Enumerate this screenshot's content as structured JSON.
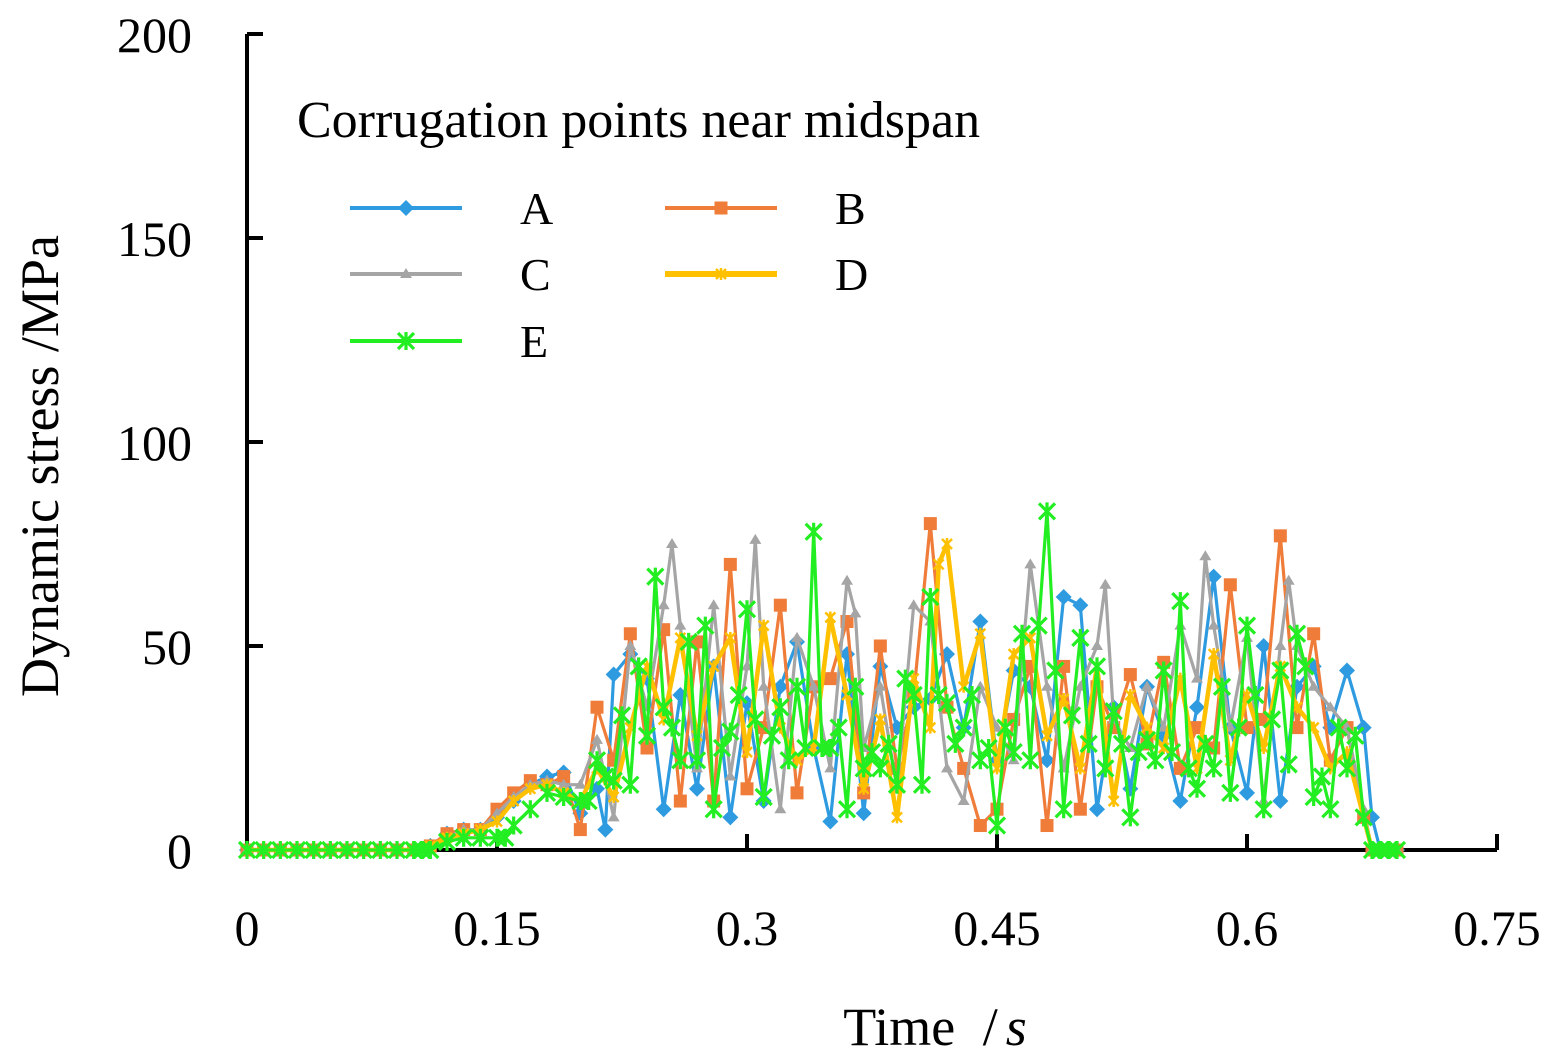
{
  "chart_data": {
    "type": "line",
    "title": "",
    "xlabel": "Time",
    "xlabel_unit": "s",
    "xlabel_sep": "/",
    "ylabel": "Dynamic stress /MPa",
    "xlim": [
      0,
      0.75
    ],
    "ylim": [
      0,
      200
    ],
    "xticks": [
      "0",
      "0.15",
      "0.3",
      "0.45",
      "0.6",
      "0.75"
    ],
    "yticks": [
      "0",
      "50",
      "100",
      "150",
      "200"
    ],
    "grid": false,
    "legend_title": "Corrugation points near midspan",
    "legend_position": "top-left",
    "series": [
      {
        "name": "A",
        "color": "#2e9be0",
        "marker": "diamond",
        "x": [
          0,
          0.01,
          0.02,
          0.03,
          0.04,
          0.05,
          0.06,
          0.07,
          0.08,
          0.09,
          0.1,
          0.11,
          0.12,
          0.13,
          0.14,
          0.15,
          0.16,
          0.17,
          0.18,
          0.19,
          0.2,
          0.21,
          0.215,
          0.22,
          0.23,
          0.24,
          0.25,
          0.26,
          0.27,
          0.28,
          0.29,
          0.3,
          0.31,
          0.32,
          0.33,
          0.34,
          0.35,
          0.36,
          0.37,
          0.38,
          0.39,
          0.4,
          0.41,
          0.42,
          0.43,
          0.44,
          0.45,
          0.46,
          0.47,
          0.48,
          0.49,
          0.5,
          0.51,
          0.52,
          0.53,
          0.54,
          0.55,
          0.56,
          0.57,
          0.58,
          0.59,
          0.6,
          0.61,
          0.62,
          0.63,
          0.64,
          0.65,
          0.66,
          0.67,
          0.675,
          0.68,
          0.69
        ],
        "y": [
          0,
          0,
          0,
          0,
          0,
          0,
          0,
          0,
          0,
          0,
          0,
          1,
          4,
          5,
          5,
          8,
          12,
          16,
          18,
          19,
          9,
          15,
          5,
          43,
          48,
          42,
          10,
          38,
          15,
          45,
          8,
          36,
          12,
          40,
          51,
          25,
          7,
          48,
          9,
          45,
          30,
          35,
          37,
          48,
          30,
          56,
          22,
          44,
          40,
          22,
          62,
          60,
          10,
          35,
          15,
          40,
          28,
          12,
          35,
          67,
          30,
          14,
          50,
          12,
          40,
          45,
          30,
          44,
          30,
          8,
          0,
          0
        ]
      },
      {
        "name": "B",
        "color": "#f07c3a",
        "marker": "square",
        "x": [
          0,
          0.01,
          0.02,
          0.03,
          0.04,
          0.05,
          0.06,
          0.07,
          0.08,
          0.09,
          0.1,
          0.11,
          0.12,
          0.13,
          0.14,
          0.15,
          0.16,
          0.17,
          0.18,
          0.19,
          0.2,
          0.21,
          0.22,
          0.23,
          0.24,
          0.25,
          0.26,
          0.27,
          0.28,
          0.29,
          0.3,
          0.31,
          0.32,
          0.33,
          0.34,
          0.35,
          0.36,
          0.37,
          0.38,
          0.39,
          0.4,
          0.41,
          0.42,
          0.43,
          0.44,
          0.45,
          0.46,
          0.47,
          0.48,
          0.49,
          0.5,
          0.51,
          0.52,
          0.53,
          0.54,
          0.55,
          0.56,
          0.57,
          0.58,
          0.59,
          0.6,
          0.61,
          0.62,
          0.63,
          0.64,
          0.65,
          0.66,
          0.67,
          0.675,
          0.68,
          0.69
        ],
        "y": [
          0,
          0,
          0,
          0,
          0,
          0,
          0,
          0,
          0,
          0,
          0,
          1,
          4,
          5,
          5,
          10,
          14,
          17,
          16,
          18,
          5,
          35,
          22,
          53,
          25,
          54,
          12,
          51,
          12,
          70,
          15,
          30,
          60,
          14,
          40,
          42,
          56,
          14,
          50,
          20,
          38,
          80,
          35,
          20,
          6,
          10,
          32,
          45,
          6,
          45,
          10,
          40,
          30,
          43,
          26,
          46,
          20,
          30,
          25,
          65,
          30,
          32,
          77,
          30,
          53,
          22,
          30,
          8,
          0,
          0,
          0
        ]
      },
      {
        "name": "C",
        "color": "#a5a5a5",
        "marker": "triangle",
        "x": [
          0,
          0.01,
          0.02,
          0.03,
          0.04,
          0.05,
          0.06,
          0.07,
          0.08,
          0.09,
          0.1,
          0.11,
          0.12,
          0.13,
          0.14,
          0.15,
          0.16,
          0.17,
          0.18,
          0.19,
          0.2,
          0.21,
          0.22,
          0.23,
          0.24,
          0.25,
          0.255,
          0.26,
          0.27,
          0.28,
          0.29,
          0.3,
          0.305,
          0.31,
          0.32,
          0.33,
          0.34,
          0.35,
          0.36,
          0.365,
          0.37,
          0.38,
          0.39,
          0.4,
          0.41,
          0.42,
          0.43,
          0.44,
          0.45,
          0.46,
          0.47,
          0.48,
          0.49,
          0.5,
          0.51,
          0.515,
          0.52,
          0.53,
          0.54,
          0.55,
          0.56,
          0.57,
          0.575,
          0.58,
          0.59,
          0.6,
          0.61,
          0.62,
          0.625,
          0.63,
          0.64,
          0.65,
          0.66,
          0.67,
          0.675,
          0.68,
          0.69
        ],
        "y": [
          0,
          0,
          0,
          0,
          0,
          0,
          0,
          0,
          0,
          0,
          0,
          1,
          3,
          5,
          5,
          9,
          13,
          16,
          17,
          16,
          16,
          27,
          8,
          50,
          35,
          60,
          75,
          55,
          20,
          60,
          18,
          45,
          76,
          40,
          10,
          52,
          40,
          20,
          66,
          58,
          25,
          40,
          15,
          60,
          56,
          20,
          12,
          40,
          30,
          22,
          70,
          40,
          20,
          40,
          50,
          65,
          32,
          25,
          40,
          30,
          55,
          42,
          72,
          55,
          30,
          52,
          12,
          50,
          66,
          50,
          40,
          35,
          30,
          10,
          0,
          0,
          0
        ]
      },
      {
        "name": "D",
        "color": "#ffc000",
        "marker": "star",
        "x": [
          0,
          0.01,
          0.02,
          0.03,
          0.04,
          0.05,
          0.06,
          0.07,
          0.08,
          0.09,
          0.1,
          0.11,
          0.12,
          0.13,
          0.14,
          0.15,
          0.16,
          0.17,
          0.18,
          0.19,
          0.2,
          0.21,
          0.22,
          0.23,
          0.24,
          0.25,
          0.26,
          0.27,
          0.28,
          0.29,
          0.3,
          0.31,
          0.32,
          0.33,
          0.34,
          0.35,
          0.36,
          0.37,
          0.38,
          0.39,
          0.4,
          0.41,
          0.415,
          0.42,
          0.43,
          0.44,
          0.45,
          0.46,
          0.47,
          0.48,
          0.49,
          0.5,
          0.51,
          0.52,
          0.53,
          0.54,
          0.55,
          0.56,
          0.57,
          0.58,
          0.59,
          0.6,
          0.61,
          0.62,
          0.63,
          0.64,
          0.65,
          0.66,
          0.67,
          0.675,
          0.68,
          0.69
        ],
        "y": [
          0,
          0,
          0,
          0,
          0,
          0,
          0,
          0,
          0,
          0,
          0,
          1,
          3,
          4,
          5,
          7,
          12,
          15,
          16,
          14,
          12,
          20,
          13,
          30,
          45,
          32,
          52,
          28,
          45,
          52,
          24,
          55,
          30,
          22,
          25,
          57,
          38,
          15,
          32,
          8,
          42,
          30,
          70,
          75,
          40,
          53,
          20,
          48,
          52,
          28,
          37,
          20,
          45,
          12,
          38,
          30,
          25,
          42,
          20,
          48,
          22,
          38,
          25,
          45,
          35,
          30,
          20,
          24,
          8,
          0,
          0,
          0
        ]
      },
      {
        "name": "E",
        "color": "#22ee22",
        "marker": "x-star",
        "x": [
          0,
          0.01,
          0.02,
          0.03,
          0.04,
          0.05,
          0.06,
          0.07,
          0.08,
          0.09,
          0.1,
          0.105,
          0.11,
          0.12,
          0.13,
          0.14,
          0.15,
          0.155,
          0.16,
          0.17,
          0.18,
          0.19,
          0.2,
          0.205,
          0.21,
          0.215,
          0.22,
          0.225,
          0.23,
          0.235,
          0.24,
          0.245,
          0.25,
          0.255,
          0.26,
          0.265,
          0.27,
          0.275,
          0.28,
          0.285,
          0.29,
          0.295,
          0.3,
          0.305,
          0.31,
          0.315,
          0.32,
          0.325,
          0.33,
          0.335,
          0.34,
          0.345,
          0.35,
          0.355,
          0.36,
          0.365,
          0.37,
          0.375,
          0.38,
          0.385,
          0.39,
          0.395,
          0.4,
          0.405,
          0.41,
          0.415,
          0.42,
          0.425,
          0.43,
          0.435,
          0.44,
          0.445,
          0.45,
          0.455,
          0.46,
          0.465,
          0.47,
          0.475,
          0.48,
          0.485,
          0.49,
          0.495,
          0.5,
          0.505,
          0.51,
          0.515,
          0.52,
          0.525,
          0.53,
          0.535,
          0.54,
          0.545,
          0.55,
          0.555,
          0.56,
          0.565,
          0.57,
          0.575,
          0.58,
          0.585,
          0.59,
          0.595,
          0.6,
          0.605,
          0.61,
          0.615,
          0.62,
          0.625,
          0.63,
          0.635,
          0.64,
          0.645,
          0.65,
          0.655,
          0.66,
          0.665,
          0.67,
          0.675,
          0.68,
          0.685,
          0.69
        ],
        "y": [
          0,
          0,
          0,
          0,
          0,
          0,
          0,
          0,
          0,
          0,
          0,
          0,
          0,
          2,
          3,
          3,
          3,
          3,
          6,
          10,
          14,
          13,
          12,
          12,
          22,
          18,
          17,
          33,
          16,
          45,
          28,
          67,
          35,
          30,
          22,
          51,
          22,
          55,
          10,
          25,
          29,
          38,
          59,
          32,
          13,
          28,
          35,
          22,
          40,
          25,
          78,
          25,
          25,
          30,
          10,
          40,
          20,
          24,
          20,
          26,
          16,
          42,
          38,
          16,
          62,
          38,
          36,
          26,
          30,
          38,
          22,
          25,
          6,
          30,
          24,
          53,
          22,
          55,
          83,
          44,
          10,
          33,
          52,
          26,
          45,
          20,
          34,
          26,
          8,
          24,
          27,
          22,
          44,
          24,
          61,
          20,
          15,
          26,
          20,
          40,
          14,
          30,
          55,
          38,
          10,
          32,
          44,
          21,
          53,
          45,
          13,
          18,
          10,
          30,
          20,
          28,
          8,
          0,
          0,
          0,
          0
        ]
      }
    ]
  }
}
